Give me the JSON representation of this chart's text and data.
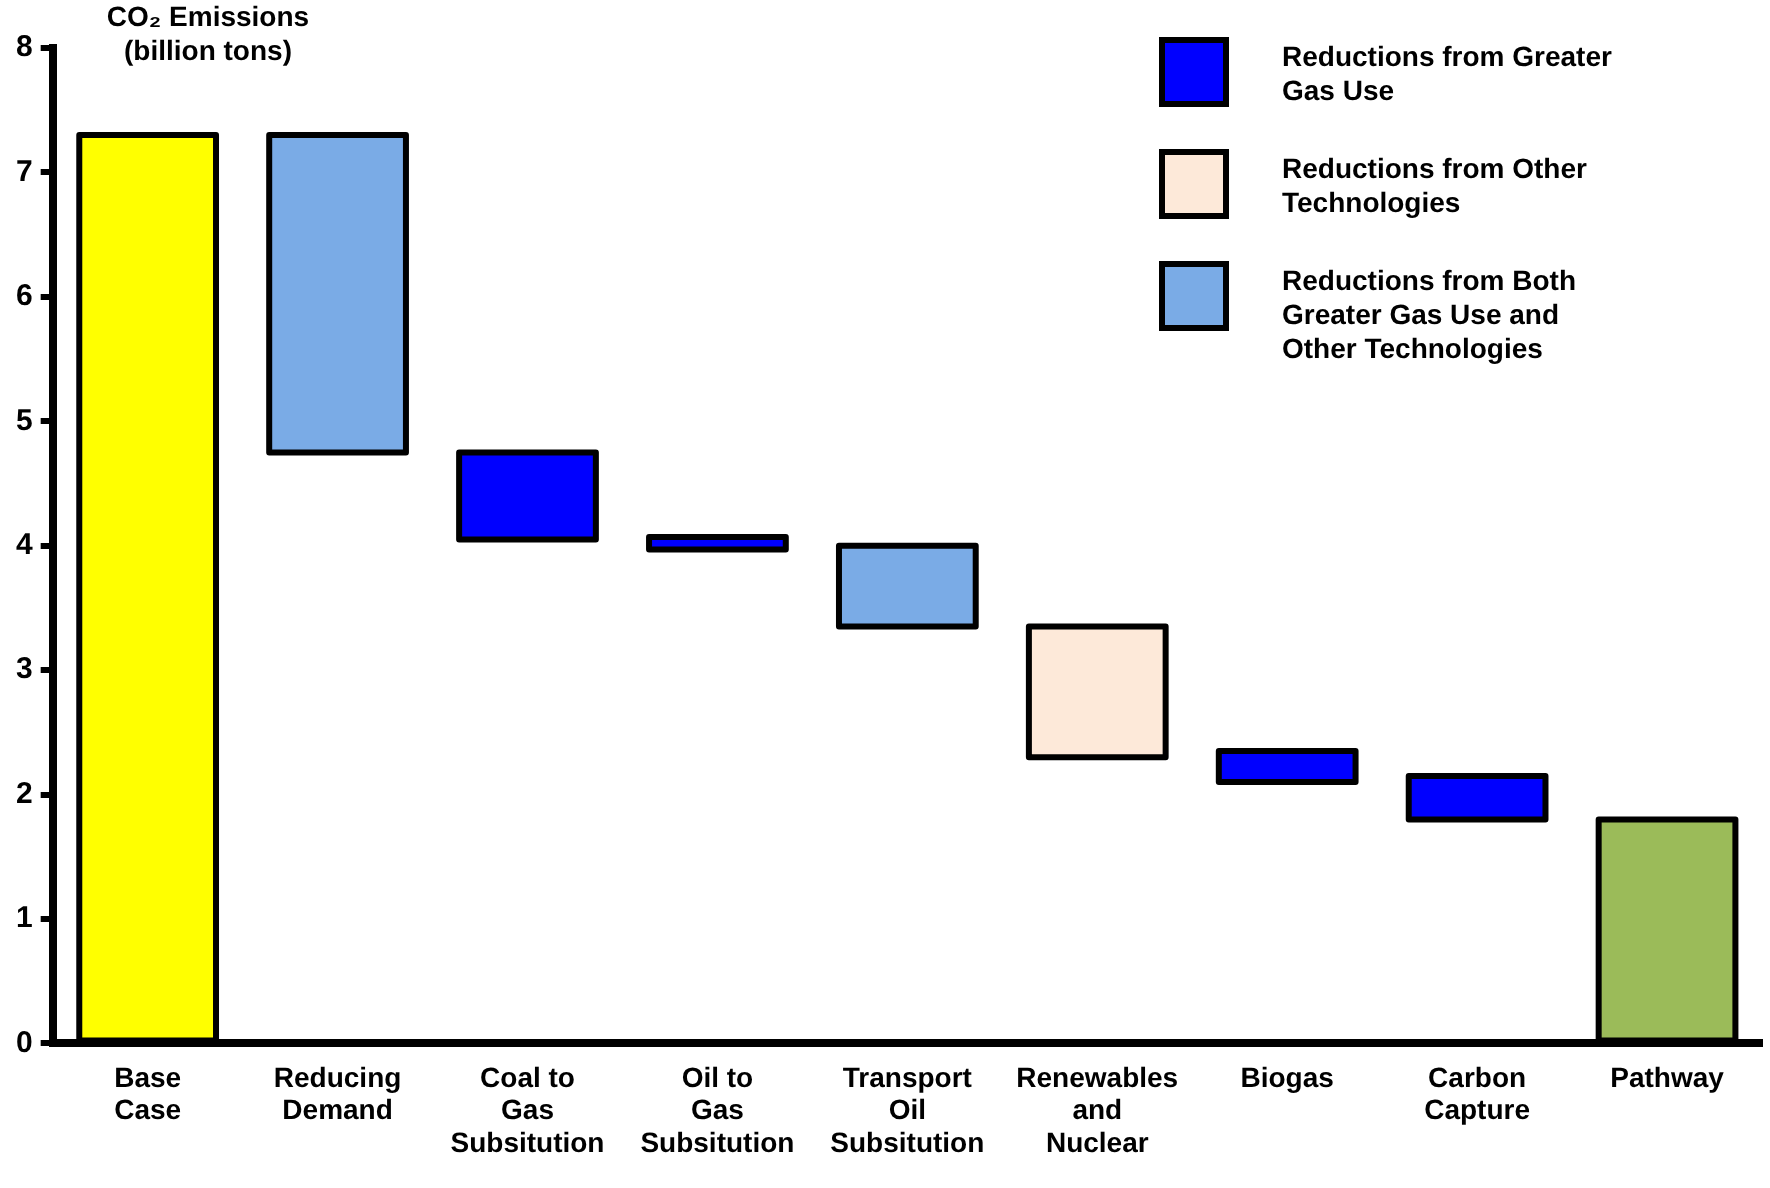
{
  "chart_data": {
    "type": "bar",
    "ylabel": "CO₂ Emissions (billion tons)",
    "categories": [
      "Base Case",
      "Reducing Demand",
      "Coal to Gas Subsitution",
      "Oil to Gas Subsitution",
      "Transport Oil Subsitution",
      "Renewables and Nuclear",
      "Biogas",
      "Carbon Capture",
      "Pathway"
    ],
    "series": [
      {
        "colors": [
          "#ffff00",
          null,
          null,
          null,
          null,
          null,
          null,
          null,
          "#9bbb59"
        ],
        "base": [
          0,
          null,
          null,
          null,
          null,
          null,
          null,
          null,
          0
        ],
        "values": [
          7.3,
          null,
          null,
          null,
          null,
          null,
          null,
          null,
          1.8
        ]
      },
      {
        "name": "Reductions from Greater Gas Use",
        "color": "#0000ff",
        "base": [
          null,
          null,
          4.05,
          3.97,
          null,
          null,
          2.1,
          1.8,
          null
        ],
        "values": [
          null,
          null,
          0.7,
          0.1,
          null,
          null,
          0.25,
          0.35,
          null
        ]
      },
      {
        "name": "Reductions from Other Technologies",
        "color": "#fde9d9",
        "base": [
          null,
          null,
          null,
          null,
          null,
          2.3,
          null,
          null,
          null
        ],
        "values": [
          null,
          null,
          null,
          null,
          null,
          1.05,
          null,
          null,
          null
        ]
      },
      {
        "name": "Reductions from Both Greater Gas Use and Other Technologies",
        "color": "#7aabe6",
        "base": [
          null,
          4.75,
          null,
          null,
          3.35,
          null,
          null,
          null,
          null
        ],
        "values": [
          null,
          2.55,
          null,
          null,
          0.65,
          null,
          null,
          null,
          null
        ]
      }
    ],
    "ylim": [
      0,
      8
    ],
    "yticks": [
      0,
      1,
      2,
      3,
      4,
      5,
      6,
      7,
      8
    ],
    "legend": "top right"
  }
}
